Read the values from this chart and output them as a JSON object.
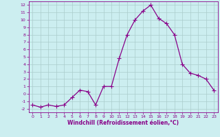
{
  "x": [
    0,
    1,
    2,
    3,
    4,
    5,
    6,
    7,
    8,
    9,
    10,
    11,
    12,
    13,
    14,
    15,
    16,
    17,
    18,
    19,
    20,
    21,
    22,
    23
  ],
  "y": [
    -1.5,
    -1.8,
    -1.5,
    -1.7,
    -1.5,
    -0.5,
    0.5,
    0.3,
    -1.5,
    1.0,
    1.0,
    4.8,
    8.0,
    10.0,
    11.2,
    12.0,
    10.2,
    9.5,
    8.0,
    4.0,
    2.8,
    2.5,
    2.0,
    0.5
  ],
  "line_color": "#880088",
  "marker": "+",
  "marker_size": 4,
  "linewidth": 0.9,
  "background_color": "#cceef0",
  "grid_color": "#aacccc",
  "xlabel": "Windchill (Refroidissement éolien,°C)",
  "xlabel_fontsize": 5.5,
  "title": "",
  "xlim": [
    -0.5,
    23.5
  ],
  "ylim": [
    -2.5,
    12.5
  ],
  "yticks": [
    -2,
    -1,
    0,
    1,
    2,
    3,
    4,
    5,
    6,
    7,
    8,
    9,
    10,
    11,
    12
  ],
  "xticks": [
    0,
    1,
    2,
    3,
    4,
    5,
    6,
    7,
    8,
    9,
    10,
    11,
    12,
    13,
    14,
    15,
    16,
    17,
    18,
    19,
    20,
    21,
    22,
    23
  ],
  "tick_fontsize": 4.5,
  "tick_color": "#880088",
  "label_color": "#880088",
  "spine_color": "#880088"
}
